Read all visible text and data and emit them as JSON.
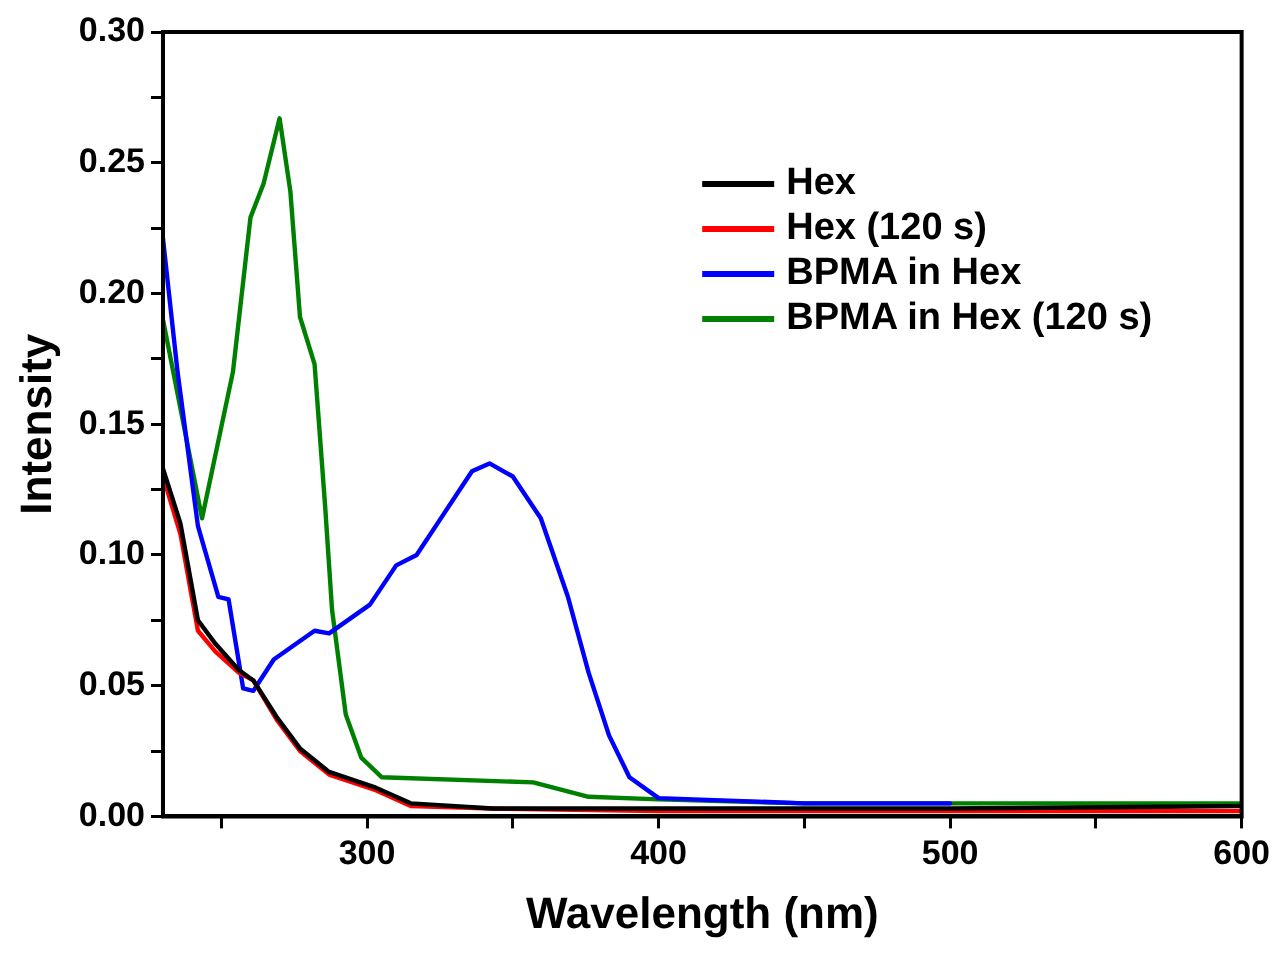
{
  "chart_data": {
    "type": "line",
    "xlabel": "Wavelength (nm)",
    "ylabel": "Intensity",
    "xlim": [
      230,
      600
    ],
    "xticks": [
      {
        "value": 250,
        "label": null
      },
      300,
      {
        "value": 350,
        "label": null
      },
      400,
      {
        "value": 450,
        "label": null
      },
      500,
      {
        "value": 550,
        "label": null
      },
      600
    ],
    "ylim": [
      0,
      0.3
    ],
    "yticks": [
      {
        "value": 0,
        "label": "0.00"
      },
      {
        "value": 0.025,
        "label": null
      },
      {
        "value": 0.05,
        "label": "0.05"
      },
      {
        "value": 0.075,
        "label": null
      },
      {
        "value": 0.1,
        "label": "0.10"
      },
      {
        "value": 0.125,
        "label": null
      },
      {
        "value": 0.15,
        "label": "0.15"
      },
      {
        "value": 0.175,
        "label": null
      },
      {
        "value": 0.2,
        "label": "0.20"
      },
      {
        "value": 0.225,
        "label": null
      },
      {
        "value": 0.25,
        "label": "0.25"
      },
      {
        "value": 0.275,
        "label": null
      },
      {
        "value": 0.3,
        "label": "0.30"
      }
    ],
    "grid": false,
    "legend": "top right",
    "marker": "none",
    "line_style": "solid",
    "series": [
      {
        "name": "Hex",
        "color": "#000000",
        "x": [
          230,
          236,
          242,
          248,
          256,
          261,
          269,
          277,
          287,
          303,
          315,
          343,
          400,
          500,
          600
        ],
        "values": [
          0.133,
          0.112,
          0.075,
          0.066,
          0.056,
          0.052,
          0.038,
          0.026,
          0.017,
          0.011,
          0.005,
          0.003,
          0.003,
          0.003,
          0.004
        ]
      },
      {
        "name": "Hex (120 s)",
        "color": "#ff0000",
        "x": [
          230,
          236,
          242,
          248,
          256,
          261,
          269,
          277,
          287,
          303,
          315,
          343,
          400,
          500,
          600
        ],
        "values": [
          0.13,
          0.108,
          0.071,
          0.063,
          0.055,
          0.052,
          0.037,
          0.025,
          0.016,
          0.01,
          0.004,
          0.003,
          0.002,
          0.002,
          0.002
        ]
      },
      {
        "name": "BPMA in Hex",
        "color": "#0000ff",
        "x": [
          230,
          235,
          242,
          249,
          252.5,
          257.5,
          261,
          268,
          282,
          287,
          301,
          310,
          317,
          326.5,
          336,
          342,
          350,
          359.6,
          368.9,
          376,
          383,
          390,
          400,
          450,
          500
        ],
        "values": [
          0.221,
          0.17,
          0.111,
          0.084,
          0.083,
          0.049,
          0.048,
          0.06,
          0.071,
          0.07,
          0.081,
          0.096,
          0.1,
          0.116,
          0.132,
          0.135,
          0.13,
          0.114,
          0.084,
          0.055,
          0.031,
          0.015,
          0.007,
          0.005,
          0.005
        ]
      },
      {
        "name": "BPMA in Hex (120 s)",
        "color": "#008000",
        "x": [
          230,
          243.4,
          254,
          260,
          264.5,
          270,
          273.7,
          277,
          282,
          285.6,
          288,
          292.7,
          298,
          305,
          357,
          376,
          400,
          450,
          500,
          600
        ],
        "values": [
          0.19,
          0.114,
          0.17,
          0.229,
          0.242,
          0.267,
          0.239,
          0.191,
          0.173,
          0.119,
          0.079,
          0.039,
          0.0225,
          0.015,
          0.013,
          0.0075,
          0.0065,
          0.005,
          0.005,
          0.005
        ]
      }
    ]
  }
}
